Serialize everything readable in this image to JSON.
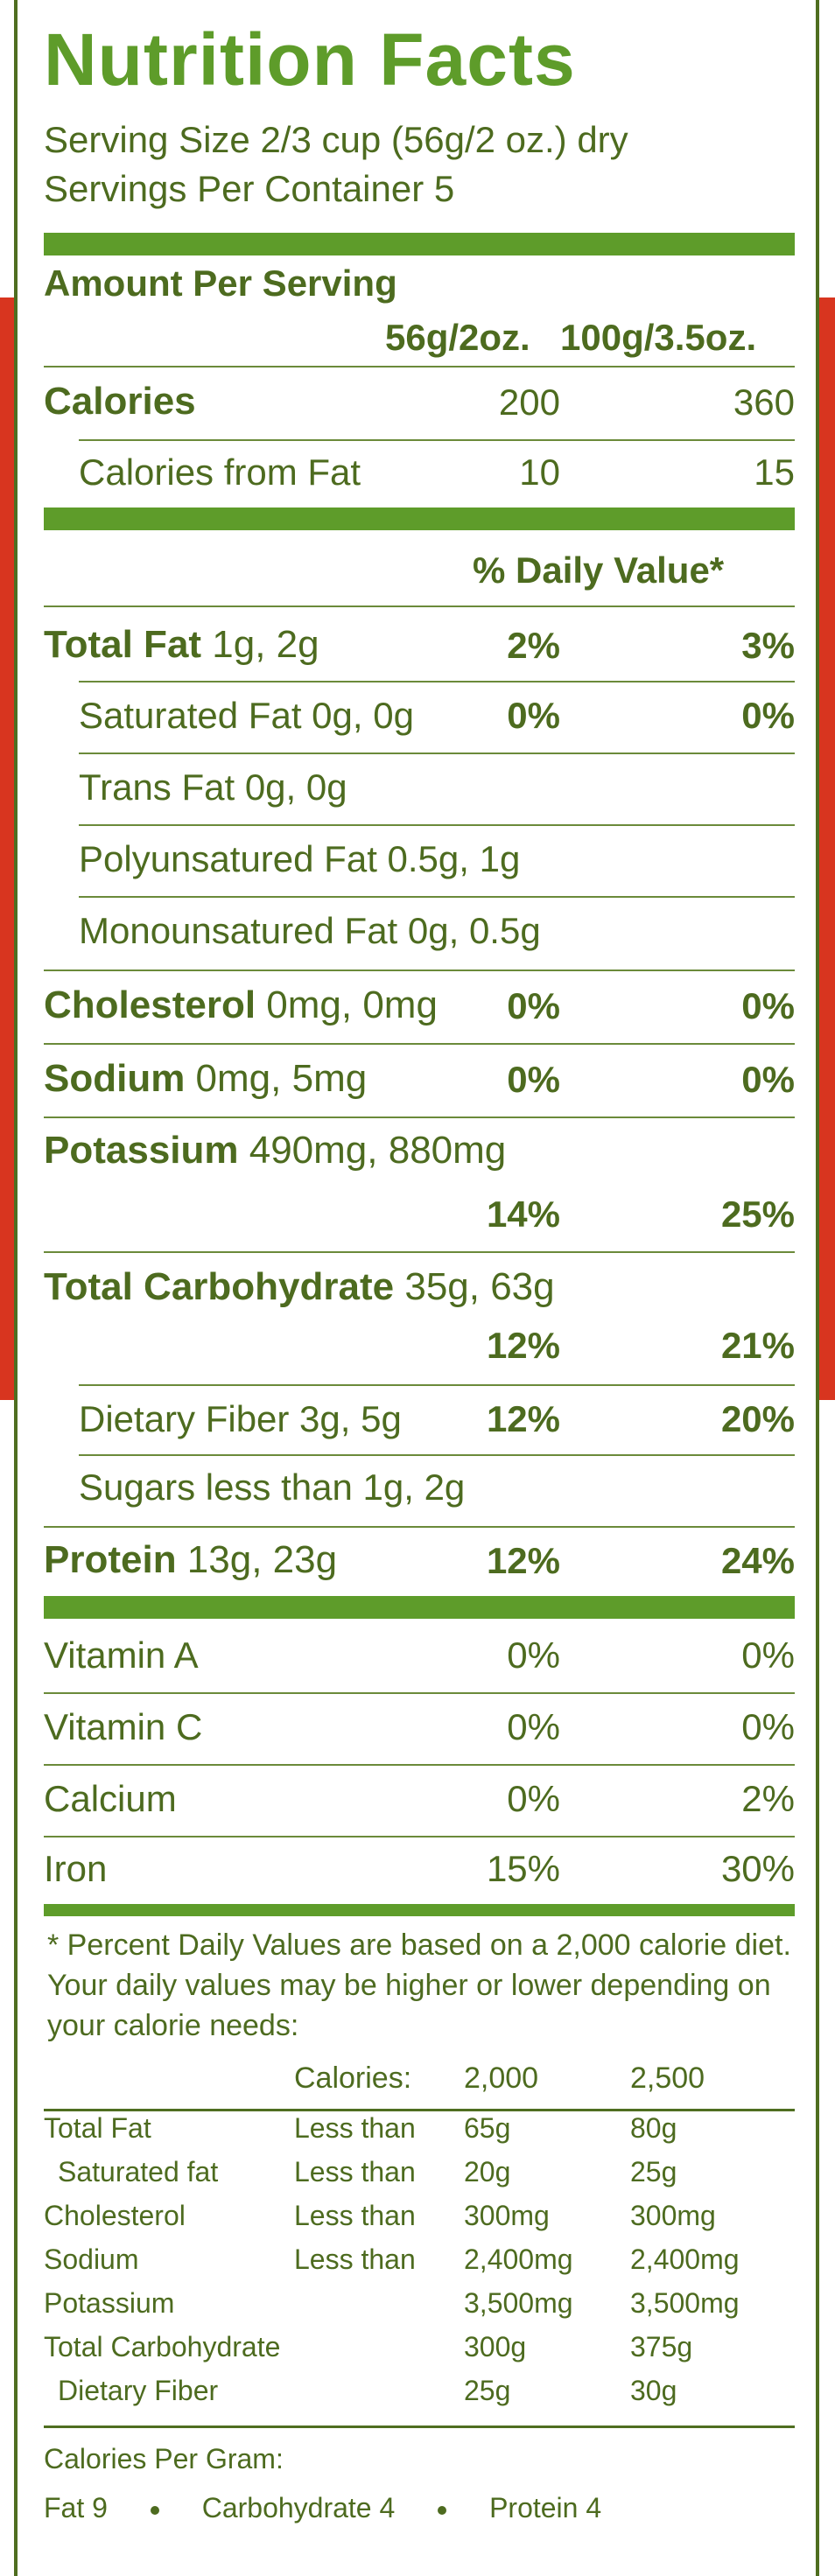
{
  "title": "Nutrition Facts",
  "serving_size": "Serving Size 2/3 cup (56g/2 oz.) dry",
  "servings_per_container": "Servings Per Container 5",
  "amount_per_serving": "Amount Per Serving",
  "columns": {
    "col1": "56g/2oz.",
    "col2": "100g/3.5oz."
  },
  "calories": {
    "label": "Calories",
    "v1": "200",
    "v2": "360"
  },
  "calories_fat": {
    "label": "Calories from Fat",
    "v1": "10",
    "v2": "15"
  },
  "daily_value_header": "% Daily Value*",
  "nutrients": {
    "total_fat": {
      "name": "Total Fat",
      "amount": " 1g, 2g",
      "p1": "2%",
      "p2": "3%"
    },
    "sat_fat": {
      "name": "Saturated Fat 0g, 0g",
      "p1": "0%",
      "p2": "0%"
    },
    "trans_fat": {
      "name": "Trans Fat 0g, 0g"
    },
    "poly_fat": {
      "name": "Polyunsatured Fat 0.5g, 1g"
    },
    "mono_fat": {
      "name": "Monounsatured Fat 0g, 0.5g"
    },
    "cholesterol": {
      "name": "Cholesterol",
      "amount": " 0mg, 0mg",
      "p1": "0%",
      "p2": "0%"
    },
    "sodium": {
      "name": "Sodium",
      "amount": " 0mg, 5mg",
      "p1": "0%",
      "p2": "0%"
    },
    "potassium": {
      "name": "Potassium",
      "amount": " 490mg, 880mg",
      "p1": "14%",
      "p2": "25%"
    },
    "carb": {
      "name": "Total Carbohydrate",
      "amount": " 35g, 63g",
      "p1": "12%",
      "p2": "21%"
    },
    "fiber": {
      "name": "Dietary Fiber 3g, 5g",
      "p1": "12%",
      "p2": "20%"
    },
    "sugars": {
      "name": "Sugars less than 1g, 2g"
    },
    "protein": {
      "name": "Protein",
      "amount": " 13g, 23g",
      "p1": "12%",
      "p2": "24%"
    }
  },
  "vitamins": [
    {
      "name": "Vitamin A",
      "p1": "0%",
      "p2": "0%"
    },
    {
      "name": "Vitamin C",
      "p1": "0%",
      "p2": "0%"
    },
    {
      "name": "Calcium",
      "p1": "0%",
      "p2": "2%"
    },
    {
      "name": "Iron",
      "p1": "15%",
      "p2": "30%"
    }
  ],
  "footnote": [
    "* Percent Daily Values are based on a 2,000 calorie diet.",
    "Your daily values may be higher or lower depending on",
    "your calorie needs:"
  ],
  "dv_table": {
    "header": {
      "label": "Calories:",
      "c1": "2,000",
      "c2": "2,500"
    },
    "rows": [
      {
        "name": "Total Fat",
        "qual": "Less than",
        "c1": "65g",
        "c2": "80g"
      },
      {
        "name": "Saturated fat",
        "qual": "Less than",
        "c1": "20g",
        "c2": "25g"
      },
      {
        "name": "Cholesterol",
        "qual": "Less than",
        "c1": "300mg",
        "c2": "300mg"
      },
      {
        "name": "Sodium",
        "qual": "Less than",
        "c1": "2,400mg",
        "c2": "2,400mg"
      },
      {
        "name": "Potassium",
        "qual": "",
        "c1": "3,500mg",
        "c2": "3,500mg"
      },
      {
        "name": "Total Carbohydrate",
        "qual": "",
        "c1": "300g",
        "c2": "375g"
      },
      {
        "name": "Dietary Fiber",
        "qual": "",
        "c1": "25g",
        "c2": "30g"
      }
    ]
  },
  "calories_per_gram": {
    "label": "Calories Per Gram:",
    "fat": "Fat 9",
    "carb": "Carbohydrate 4",
    "protein": "Protein 4"
  },
  "colors": {
    "green_text": "#4d6b1f",
    "green_bar": "#5e9c2a",
    "red": "#d8351f"
  }
}
